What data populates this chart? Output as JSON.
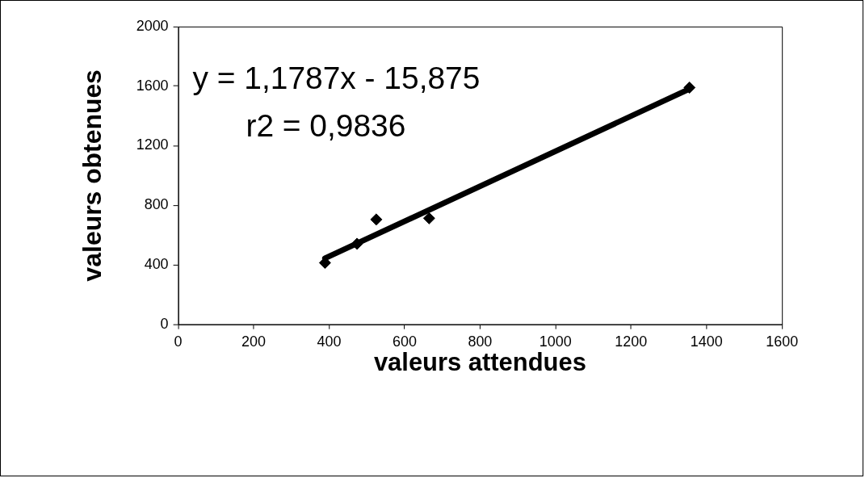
{
  "chart_data": {
    "type": "scatter",
    "xlabel": "valeurs attendues",
    "ylabel": "valeurs obtenues",
    "xlim": [
      0,
      1600
    ],
    "xticks": [
      0,
      200,
      400,
      600,
      800,
      1000,
      1200,
      1400,
      1600
    ],
    "ylim": [
      0,
      2000
    ],
    "yticks": [
      0,
      400,
      800,
      1200,
      1600,
      2000
    ],
    "grid": false,
    "legend": false,
    "marker": "diamond",
    "series": [
      {
        "color": "#000000",
        "x": [
          389,
          474,
          525,
          665,
          1355
        ],
        "values": [
          413,
          541,
          704,
          712,
          1590
        ]
      },
      {
        "type": "line",
        "color": "#000000",
        "x": [
          389,
          1355
        ],
        "values": [
          443,
          1581
        ],
        "line_style": "solid",
        "marker": "none"
      }
    ],
    "annotations": [
      "y = 1,1787x - 15,875",
      "r2 = 0,9836"
    ]
  }
}
